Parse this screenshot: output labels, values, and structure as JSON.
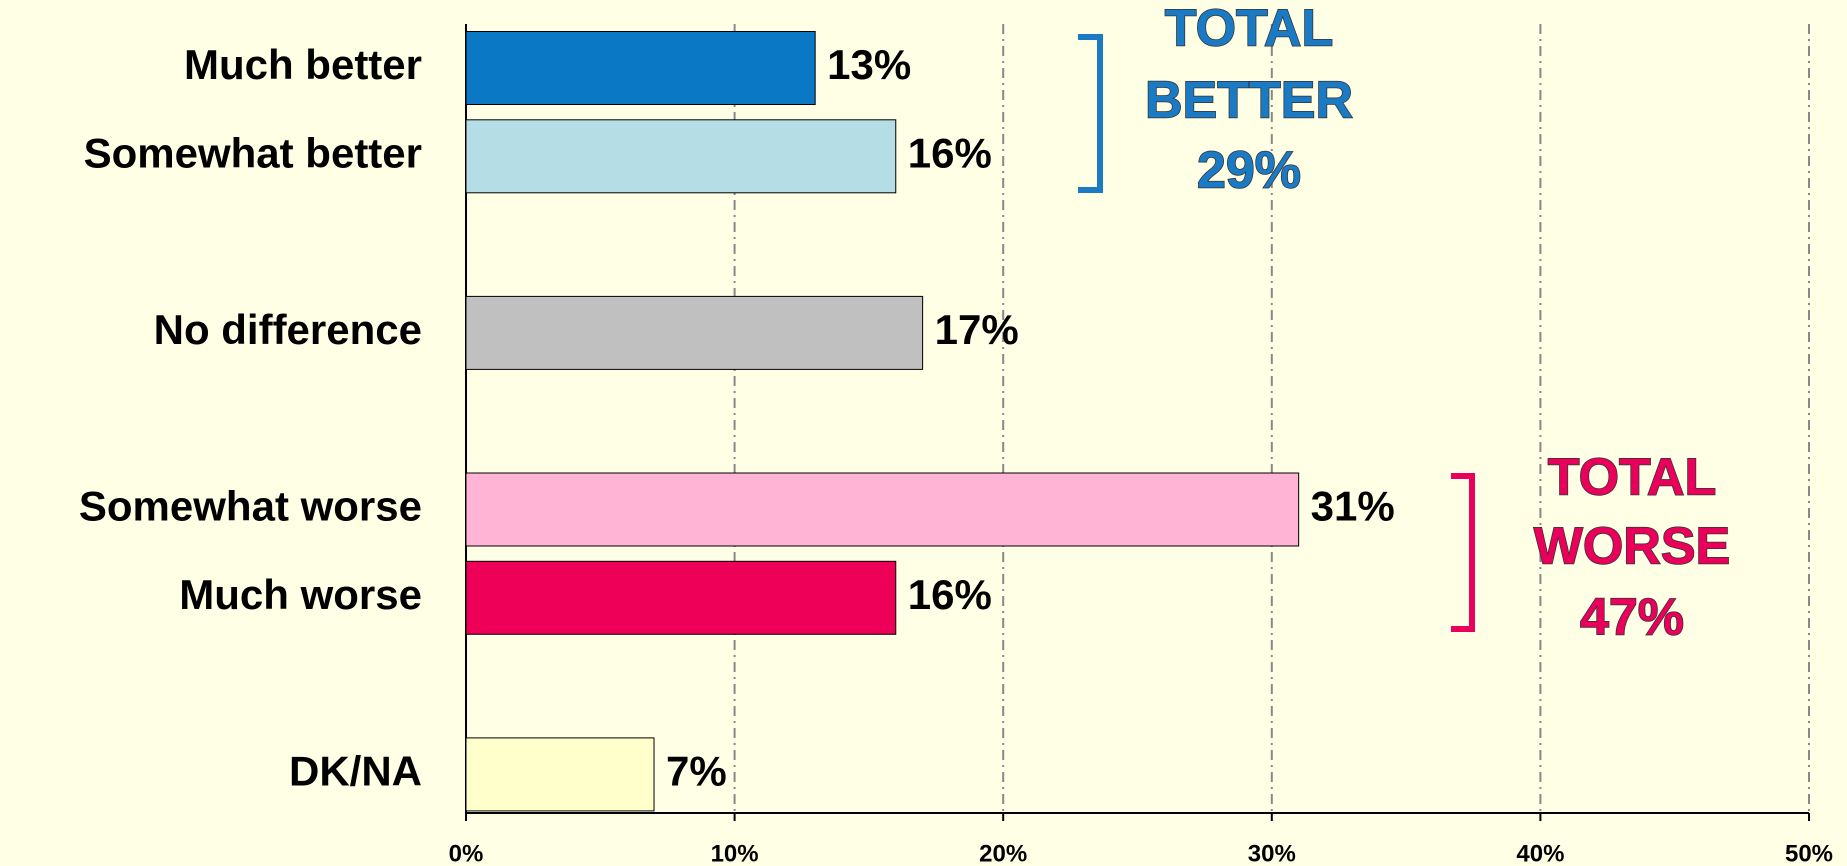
{
  "chart_data": {
    "type": "hbar",
    "categories": [
      "Much better",
      "Somewhat better",
      null,
      "No difference",
      null,
      "Somewhat worse",
      "Much worse",
      null,
      "DK/NA"
    ],
    "values": [
      13,
      16,
      null,
      17,
      null,
      31,
      16,
      null,
      7
    ],
    "value_labels": [
      "13%",
      "16%",
      null,
      "17%",
      null,
      "31%",
      "16%",
      null,
      "7%"
    ],
    "colors": [
      "#0a78c4",
      "#b4dde6",
      null,
      "#c0c0c0",
      null,
      "#ffb4d6",
      "#ee0058",
      null,
      "#ffffcc"
    ],
    "xlim": [
      0,
      50
    ],
    "xticks": [
      {
        "value": 0,
        "label": "0%"
      },
      {
        "value": 10,
        "label": "10%"
      },
      {
        "value": 20,
        "label": "20%"
      },
      {
        "value": 30,
        "label": "30%"
      },
      {
        "value": 40,
        "label": "40%"
      },
      {
        "value": 50,
        "label": "50%"
      }
    ],
    "grid": true,
    "annotations": [
      {
        "lines": [
          "TOTAL",
          "BETTER",
          "29%"
        ],
        "color": "#1a7ac4"
      },
      {
        "lines": [
          "TOTAL",
          "WORSE",
          "47%"
        ],
        "color": "#e8005a"
      }
    ]
  }
}
